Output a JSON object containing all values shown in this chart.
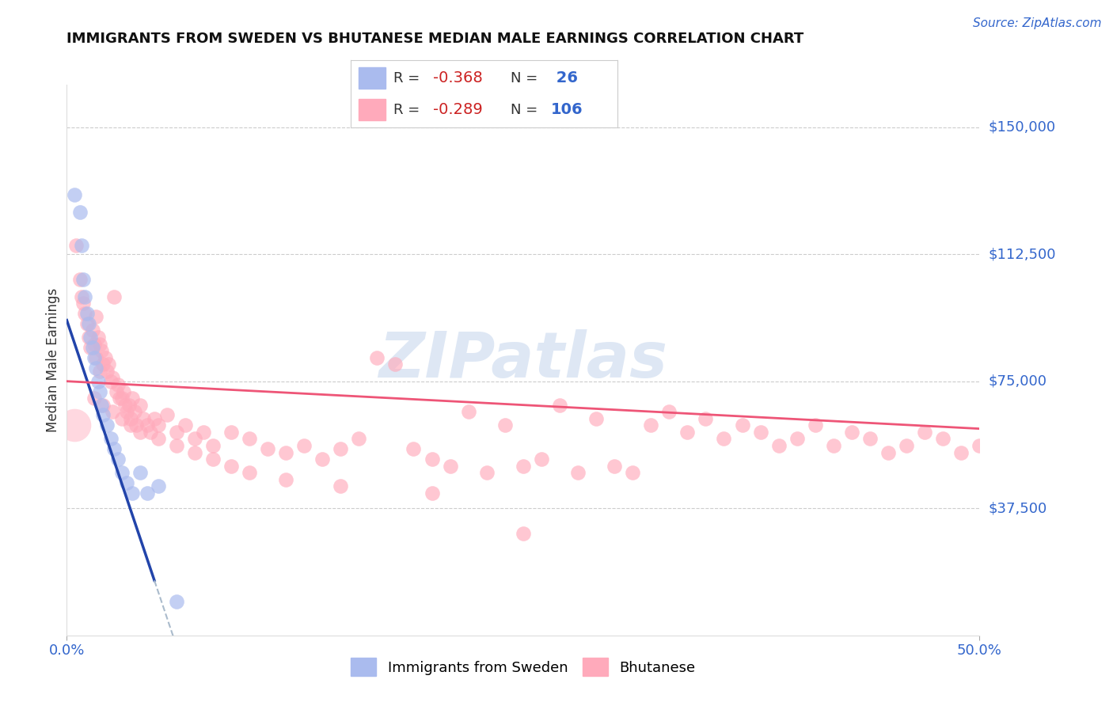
{
  "title": "IMMIGRANTS FROM SWEDEN VS BHUTANESE MEDIAN MALE EARNINGS CORRELATION CHART",
  "source": "Source: ZipAtlas.com",
  "ylabel": "Median Male Earnings",
  "color_blue": "#AABBEE",
  "color_pink": "#FFAABB",
  "color_trend_blue": "#2244AA",
  "color_trend_blue_dash": "#AABBCC",
  "color_trend_pink": "#EE5577",
  "color_axis_text": "#3366CC",
  "color_grid": "#CCCCCC",
  "watermark_color": "#C8D8EE",
  "xlim": [
    0.0,
    0.5
  ],
  "ylim": [
    0.0,
    162500
  ],
  "ytick_vals": [
    37500,
    75000,
    112500,
    150000
  ],
  "ytick_labels": [
    "$37,500",
    "$75,000",
    "$112,500",
    "$150,000"
  ],
  "sweden_x": [
    0.004,
    0.007,
    0.008,
    0.009,
    0.01,
    0.011,
    0.012,
    0.013,
    0.014,
    0.015,
    0.016,
    0.017,
    0.018,
    0.019,
    0.02,
    0.022,
    0.024,
    0.026,
    0.028,
    0.03,
    0.033,
    0.036,
    0.04,
    0.044,
    0.05,
    0.06
  ],
  "sweden_y": [
    130000,
    125000,
    115000,
    105000,
    100000,
    95000,
    92000,
    88000,
    85000,
    82000,
    79000,
    75000,
    72000,
    68000,
    65000,
    62000,
    58000,
    55000,
    52000,
    48000,
    45000,
    42000,
    48000,
    42000,
    44000,
    10000
  ],
  "bhutan_x": [
    0.005,
    0.007,
    0.008,
    0.009,
    0.01,
    0.011,
    0.012,
    0.013,
    0.014,
    0.015,
    0.016,
    0.016,
    0.017,
    0.018,
    0.018,
    0.019,
    0.02,
    0.021,
    0.022,
    0.023,
    0.024,
    0.025,
    0.026,
    0.027,
    0.028,
    0.029,
    0.03,
    0.031,
    0.032,
    0.033,
    0.034,
    0.035,
    0.036,
    0.037,
    0.038,
    0.04,
    0.042,
    0.044,
    0.046,
    0.048,
    0.05,
    0.055,
    0.06,
    0.065,
    0.07,
    0.075,
    0.08,
    0.09,
    0.1,
    0.11,
    0.12,
    0.13,
    0.14,
    0.15,
    0.16,
    0.17,
    0.18,
    0.19,
    0.2,
    0.21,
    0.22,
    0.23,
    0.24,
    0.25,
    0.26,
    0.27,
    0.28,
    0.29,
    0.3,
    0.31,
    0.32,
    0.33,
    0.34,
    0.35,
    0.36,
    0.37,
    0.38,
    0.39,
    0.4,
    0.41,
    0.42,
    0.43,
    0.44,
    0.45,
    0.46,
    0.47,
    0.48,
    0.49,
    0.5,
    0.51,
    0.015,
    0.02,
    0.025,
    0.03,
    0.035,
    0.04,
    0.05,
    0.06,
    0.07,
    0.08,
    0.09,
    0.1,
    0.12,
    0.15,
    0.2,
    0.25
  ],
  "bhutan_y": [
    115000,
    105000,
    100000,
    98000,
    95000,
    92000,
    88000,
    85000,
    90000,
    86000,
    94000,
    82000,
    88000,
    86000,
    78000,
    84000,
    80000,
    82000,
    78000,
    80000,
    75000,
    76000,
    100000,
    72000,
    74000,
    70000,
    70000,
    72000,
    68000,
    66000,
    68000,
    64000,
    70000,
    66000,
    62000,
    68000,
    64000,
    62000,
    60000,
    64000,
    62000,
    65000,
    60000,
    62000,
    58000,
    60000,
    56000,
    60000,
    58000,
    55000,
    54000,
    56000,
    52000,
    55000,
    58000,
    82000,
    80000,
    55000,
    52000,
    50000,
    66000,
    48000,
    62000,
    50000,
    52000,
    68000,
    48000,
    64000,
    50000,
    48000,
    62000,
    66000,
    60000,
    64000,
    58000,
    62000,
    60000,
    56000,
    58000,
    62000,
    56000,
    60000,
    58000,
    54000,
    56000,
    60000,
    58000,
    54000,
    56000,
    58000,
    70000,
    68000,
    66000,
    64000,
    62000,
    60000,
    58000,
    56000,
    54000,
    52000,
    50000,
    48000,
    46000,
    44000,
    42000,
    30000
  ],
  "big_pink_x": [
    0.004
  ],
  "big_pink_y": [
    62000
  ]
}
